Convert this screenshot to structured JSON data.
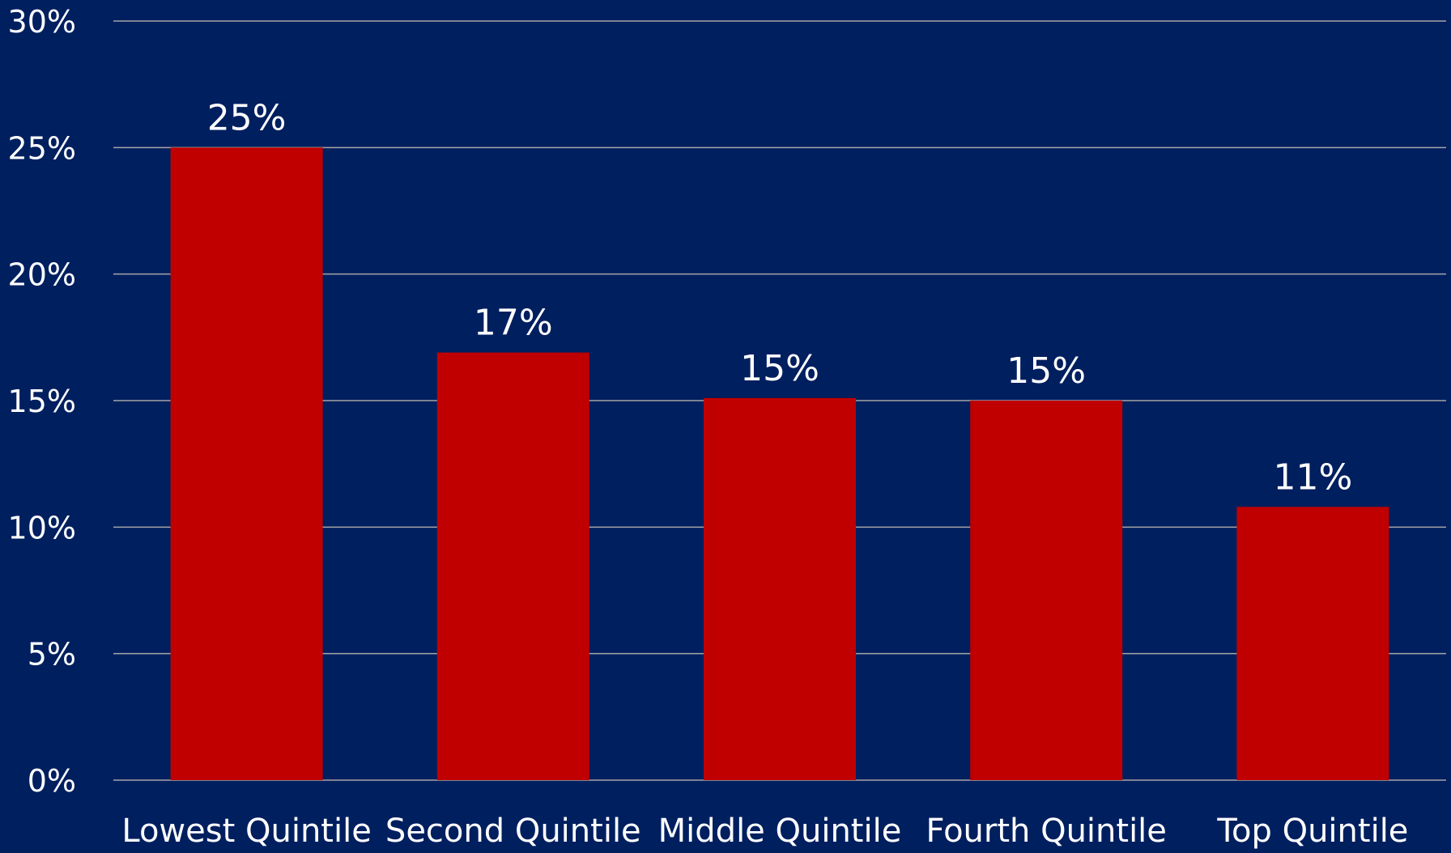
{
  "chart_data": {
    "type": "bar",
    "categories": [
      "Lowest Quintile",
      "Second Quintile",
      "Middle Quintile",
      "Fourth Quintile",
      "Top Quintile"
    ],
    "series": [
      {
        "values": [
          25.0,
          16.9,
          15.1,
          15.0,
          10.8
        ],
        "data_labels": [
          "25%",
          "17%",
          "15%",
          "15%",
          "11%"
        ]
      }
    ],
    "title": "",
    "xlabel": "",
    "ylabel": "",
    "ylim": [
      0,
      30
    ],
    "yticks": [
      0,
      5,
      10,
      15,
      20,
      25,
      30
    ],
    "ytick_labels": [
      "0%",
      "5%",
      "10%",
      "15%",
      "20%",
      "25%",
      "30%"
    ],
    "grid": true,
    "legend": "none",
    "colors": {
      "background": "#001f5f",
      "bar": "#c00000",
      "gridline": "#a6a6a6",
      "text": "#ffffff"
    }
  }
}
